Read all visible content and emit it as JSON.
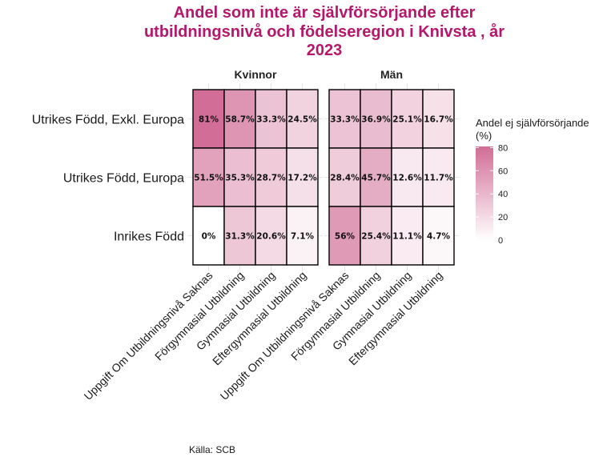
{
  "chart_data": {
    "type": "heatmap",
    "title_lines": [
      "Andel som inte är självförsörjande efter",
      "utbildningsnivå och födelseregion i Knivsta , år",
      "2023"
    ],
    "facets": [
      "Kvinnor",
      "Män"
    ],
    "rows": [
      "Utrikes Född, Exkl. Europa",
      "Utrikes Född, Europa",
      "Inrikes Född"
    ],
    "columns": [
      "Uppgift Om Utbildningsnivå Saknas",
      "Förgymnasial Utbildning",
      "Gymnasial Utbildning",
      "Eftergymnasial Utbildning"
    ],
    "values": {
      "Kvinnor": [
        [
          81,
          58.7,
          33.3,
          24.5
        ],
        [
          51.5,
          35.3,
          28.7,
          17.2
        ],
        [
          0,
          31.3,
          20.6,
          7.1
        ]
      ],
      "Män": [
        [
          33.3,
          36.9,
          25.1,
          16.7
        ],
        [
          28.4,
          45.7,
          12.6,
          11.7
        ],
        [
          56,
          25.4,
          11.1,
          4.7
        ]
      ]
    },
    "labels": {
      "Kvinnor": [
        [
          "81%",
          "58.7%",
          "33.3%",
          "24.5%"
        ],
        [
          "51.5%",
          "35.3%",
          "28.7%",
          "17.2%"
        ],
        [
          "0%",
          "31.3%",
          "20.6%",
          "7.1%"
        ]
      ],
      "Män": [
        [
          "33.3%",
          "36.9%",
          "25.1%",
          "16.7%"
        ],
        [
          "28.4%",
          "45.7%",
          "12.6%",
          "11.7%"
        ],
        [
          "56%",
          "25.4%",
          "11.1%",
          "4.7%"
        ]
      ]
    },
    "legend": {
      "title_lines": [
        "Andel ej självförsörjande",
        "(%)"
      ],
      "ticks": [
        0,
        20,
        40,
        60,
        80
      ],
      "range": [
        0,
        81
      ],
      "position": "right"
    },
    "color_scale": {
      "low": "#ffffff",
      "high": "#d16d96"
    },
    "caption": "Källa: SCB",
    "grid": true
  }
}
